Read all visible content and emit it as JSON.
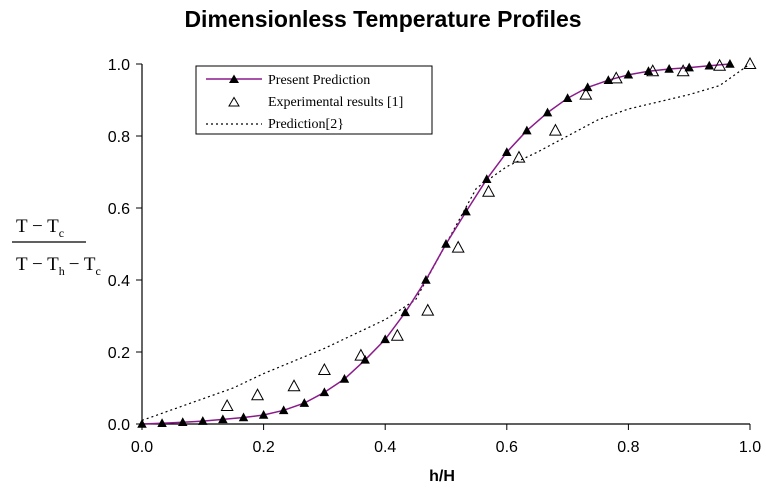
{
  "chart_data": {
    "type": "line",
    "title": "Dimensionless Temperature Profiles",
    "xlabel": "h/H",
    "ylabel": {
      "numerator": "T − T",
      "numerator_sub": "c",
      "denominator": "T − T",
      "denominator_sub1": "h",
      "denominator_sub2": "c"
    },
    "xlim": [
      0.0,
      1.0
    ],
    "ylim": [
      0.0,
      1.0
    ],
    "x_ticks": [
      "0.0",
      "0.2",
      "0.4",
      "0.6",
      "0.8",
      "1.0"
    ],
    "y_ticks": [
      "0.0",
      "0.2",
      "0.4",
      "0.6",
      "0.8",
      "1.0"
    ],
    "grid": false,
    "legend_position": "top-left",
    "series": [
      {
        "name": "Present Prediction",
        "style": "line-with-filled-triangles",
        "color": "#8b1a8b",
        "marker_color": "#000000",
        "x": [
          0.0,
          0.033,
          0.067,
          0.1,
          0.133,
          0.167,
          0.2,
          0.233,
          0.267,
          0.3,
          0.333,
          0.367,
          0.4,
          0.433,
          0.467,
          0.5,
          0.533,
          0.567,
          0.6,
          0.633,
          0.667,
          0.7,
          0.733,
          0.767,
          0.8,
          0.833,
          0.867,
          0.9,
          0.933,
          0.967
        ],
        "y": [
          0.0,
          0.002,
          0.005,
          0.008,
          0.013,
          0.018,
          0.025,
          0.038,
          0.058,
          0.088,
          0.125,
          0.178,
          0.235,
          0.31,
          0.4,
          0.5,
          0.59,
          0.68,
          0.755,
          0.815,
          0.865,
          0.905,
          0.935,
          0.955,
          0.97,
          0.98,
          0.986,
          0.99,
          0.995,
          1.0
        ]
      },
      {
        "name": "Experimental results [1]",
        "style": "open-triangles",
        "color": "#000000",
        "x": [
          0.14,
          0.19,
          0.25,
          0.3,
          0.36,
          0.42,
          0.47,
          0.52,
          0.57,
          0.62,
          0.68,
          0.73,
          0.78,
          0.84,
          0.89,
          0.95,
          1.0
        ],
        "y": [
          0.05,
          0.08,
          0.105,
          0.15,
          0.19,
          0.245,
          0.315,
          0.49,
          0.645,
          0.74,
          0.815,
          0.915,
          0.96,
          0.98,
          0.98,
          0.995,
          1.0
        ]
      },
      {
        "name": "Prediction[2}",
        "style": "dotted-line",
        "color": "#000000",
        "x": [
          0.0,
          0.05,
          0.1,
          0.15,
          0.2,
          0.25,
          0.3,
          0.35,
          0.4,
          0.45,
          0.5,
          0.55,
          0.6,
          0.65,
          0.7,
          0.75,
          0.8,
          0.85,
          0.9,
          0.95,
          1.0
        ],
        "y": [
          0.01,
          0.04,
          0.07,
          0.1,
          0.14,
          0.175,
          0.21,
          0.25,
          0.29,
          0.345,
          0.5,
          0.655,
          0.715,
          0.755,
          0.8,
          0.845,
          0.875,
          0.895,
          0.915,
          0.94,
          1.0
        ]
      }
    ]
  }
}
